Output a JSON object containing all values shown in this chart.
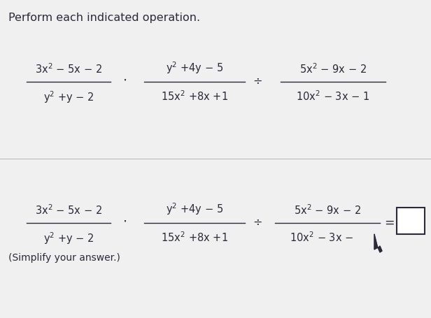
{
  "title": "Perform each indicated operation.",
  "bg_color": "#f0f0f0",
  "text_color": "#2a2a3a",
  "line_color": "#2a2a3a",
  "title_fontsize": 11.5,
  "math_fontsize": 10.5,
  "small_fontsize": 10,
  "divider_color": "#bbbbbb",
  "box_color": "#ffffff",
  "section1": {
    "frac1_num": "3x$^2$ − 5x − 2",
    "frac1_den": "y$^2$ +y − 2",
    "dot": "·",
    "frac2_num": "y$^2$ +4y − 5",
    "frac2_den": "15x$^2$ +8x +1",
    "div": "÷",
    "frac3_num": "5x$^2$ − 9x − 2",
    "frac3_den": "10x$^2$ − 3x − 1"
  },
  "section2": {
    "frac1_num": "3x$^2$ − 5x − 2",
    "frac1_den": "y$^2$ +y − 2",
    "dot": "·",
    "frac2_num": "y$^2$ +4y − 5",
    "frac2_den": "15x$^2$ +8x +1",
    "div": "÷",
    "frac3_num": "5x$^2$ − 9x − 2",
    "frac3_den": "10x$^2$ − 3x −"
  },
  "simplify_note": "(Simplify your answer.)"
}
